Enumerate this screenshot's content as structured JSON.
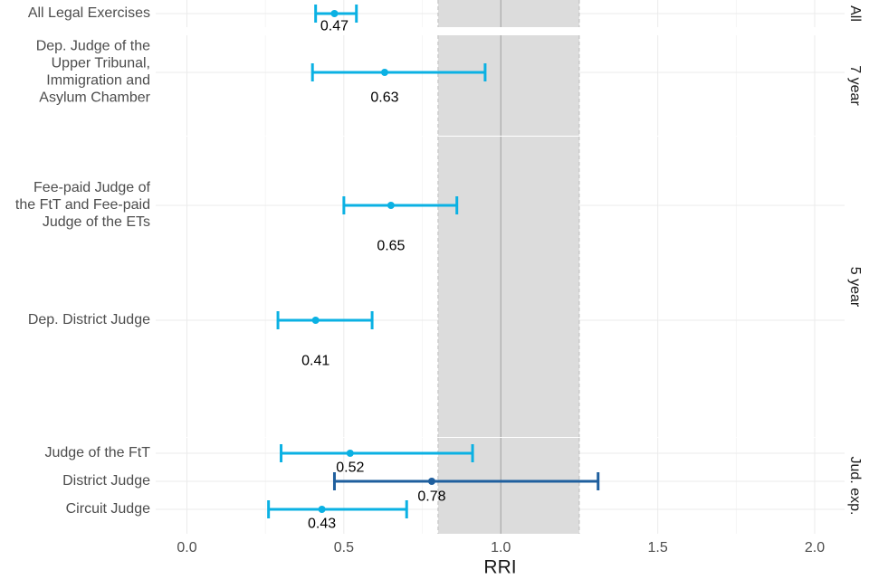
{
  "chart_data": {
    "type": "forest",
    "xlabel": "RRI",
    "xlim": [
      -0.1,
      2.1
    ],
    "x_ticks": [
      0.0,
      0.5,
      1.0,
      1.5,
      2.0
    ],
    "x_tick_labels": [
      "0.0",
      "0.5",
      "1.0",
      "1.5",
      "2.0"
    ],
    "reference_line": 1.0,
    "reference_band": [
      0.8,
      1.25
    ],
    "grid": true,
    "colors": {
      "light_blue": "#0bb1e3",
      "dark_blue": "#1f5f9e",
      "band": "#dcdcdc",
      "grid": "#ebebeb"
    },
    "panels": [
      {
        "label": "All",
        "rows": [
          {
            "label": [
              "All Legal Exercises"
            ],
            "estimate": 0.47,
            "value_label": "0.47",
            "lower": 0.41,
            "upper": 0.54,
            "color": "#0bb1e3"
          }
        ]
      },
      {
        "label": "7 year",
        "rows": [
          {
            "label": [
              "Dep. Judge of the",
              "Upper Tribunal,",
              "Immigration and",
              "Asylum Chamber"
            ],
            "estimate": 0.63,
            "value_label": "0.63",
            "lower": 0.4,
            "upper": 0.95,
            "color": "#0bb1e3"
          }
        ]
      },
      {
        "label": "5 year",
        "rows": [
          {
            "label": [
              "Fee-paid Judge of",
              "the FtT and Fee-paid",
              "Judge of the ETs"
            ],
            "estimate": 0.65,
            "value_label": "0.65",
            "lower": 0.5,
            "upper": 0.86,
            "color": "#0bb1e3"
          },
          {
            "label": [
              "Dep. District Judge"
            ],
            "estimate": 0.41,
            "value_label": "0.41",
            "lower": 0.29,
            "upper": 0.59,
            "color": "#0bb1e3"
          }
        ]
      },
      {
        "label": "Jud. exp.",
        "rows": [
          {
            "label": [
              "Judge of the FtT"
            ],
            "estimate": 0.52,
            "value_label": "0.52",
            "lower": 0.3,
            "upper": 0.91,
            "color": "#0bb1e3"
          },
          {
            "label": [
              "District Judge"
            ],
            "estimate": 0.78,
            "value_label": "0.78",
            "lower": 0.47,
            "upper": 1.31,
            "color": "#1f5f9e"
          },
          {
            "label": [
              "Circuit Judge"
            ],
            "estimate": 0.43,
            "value_label": "0.43",
            "lower": 0.26,
            "upper": 0.7,
            "color": "#0bb1e3"
          }
        ]
      }
    ]
  }
}
